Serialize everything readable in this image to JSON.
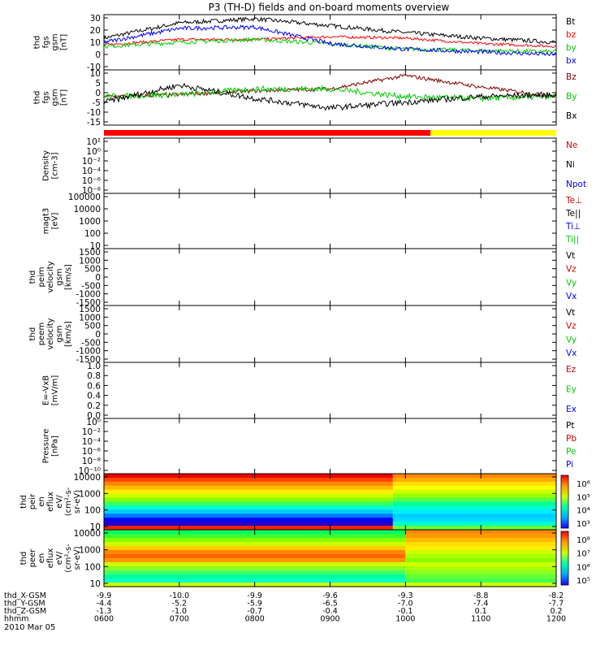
{
  "title": "P3 (TH-D) fields and on-board moments overview",
  "date_label": "2010 Mar 05",
  "colors": {
    "black": "#000000",
    "red": "#ff0000",
    "green": "#00cc00",
    "blue": "#0000ff",
    "dark_red": "#800000",
    "bright_green": "#33ee55",
    "yellow": "#ffff00"
  },
  "panels": [
    {
      "id": "fgs-mag",
      "ylabel": [
        "thd",
        "fgs",
        "gsm",
        "[nT]"
      ],
      "ticks": [
        "30",
        "20",
        "10",
        "0",
        "-10"
      ],
      "legend": [
        {
          "text": "Bt",
          "color": "#000000"
        },
        {
          "text": "bz",
          "color": "#ff0000"
        },
        {
          "text": "by",
          "color": "#00cc00"
        },
        {
          "text": "bx",
          "color": "#0000ff"
        }
      ]
    },
    {
      "id": "fgs-comp",
      "ylabel": [
        "thd",
        "fgs",
        "gsm",
        "[nT]"
      ],
      "ticks": [
        "10",
        "5",
        "0",
        "-5",
        "-10",
        "-15"
      ],
      "legend": [
        {
          "text": "Bz",
          "color": "#800000"
        },
        {
          "text": "By",
          "color": "#00cc00"
        },
        {
          "text": "Bx",
          "color": "#000000"
        }
      ]
    },
    {
      "id": "density",
      "ylabel": [
        "Density",
        "[cm-3]"
      ],
      "ticks": [
        "10²",
        "10⁰",
        "10⁻²",
        "10⁻⁴",
        "10⁻⁶",
        "10⁻⁸"
      ],
      "legend": [
        {
          "text": "Ne",
          "color": "#cc0000"
        },
        {
          "text": "Ni",
          "color": "#000000"
        },
        {
          "text": "Npot",
          "color": "#0000ff"
        }
      ]
    },
    {
      "id": "temperature",
      "ylabel": [
        "magt3",
        "[eV]"
      ],
      "ticks": [
        "100000",
        "10000",
        "1000",
        "100",
        "10"
      ],
      "legend": [
        {
          "text": "Te⊥",
          "color": "#cc0000"
        },
        {
          "text": "Te||",
          "color": "#000000"
        },
        {
          "text": "Ti⊥",
          "color": "#0000ff"
        },
        {
          "text": "Ti||",
          "color": "#00cc00"
        }
      ]
    },
    {
      "id": "peim-vel",
      "ylabel": [
        "thd",
        "peim",
        "velocity",
        "gsm",
        "[km/s]"
      ],
      "ticks": [
        "1500",
        "1000",
        "500",
        "0",
        "-500",
        "-1000",
        "-1500"
      ],
      "legend": [
        {
          "text": "Vt",
          "color": "#000000"
        },
        {
          "text": "Vz",
          "color": "#cc0000"
        },
        {
          "text": "Vy",
          "color": "#00cc00"
        },
        {
          "text": "Vx",
          "color": "#0000ff"
        }
      ]
    },
    {
      "id": "peem-vel",
      "ylabel": [
        "thd",
        "peem",
        "velocity",
        "gsm",
        "[km/s]"
      ],
      "ticks": [
        "1500",
        "1000",
        "500",
        "0",
        "-500",
        "-1000",
        "-1500"
      ],
      "legend": [
        {
          "text": "Vt",
          "color": "#000000"
        },
        {
          "text": "Vz",
          "color": "#cc0000"
        },
        {
          "text": "Vy",
          "color": "#00cc00"
        },
        {
          "text": "Vx",
          "color": "#0000ff"
        }
      ]
    },
    {
      "id": "efield",
      "ylabel": [
        "E=-VxB",
        "[mV/m]"
      ],
      "ticks": [
        "1.0",
        "0.8",
        "0.6",
        "0.4",
        "0.2",
        "0.0"
      ],
      "legend": [
        {
          "text": "Ez",
          "color": "#cc0000"
        },
        {
          "text": "Ey",
          "color": "#00cc00"
        },
        {
          "text": "Ex",
          "color": "#0000ff"
        }
      ]
    },
    {
      "id": "pressure",
      "ylabel": [
        "Pressure",
        "[nPa]"
      ],
      "ticks": [
        "10⁰",
        "10⁻²",
        "10⁻⁴",
        "10⁻⁶",
        "10⁻⁸",
        "10⁻¹⁰"
      ],
      "legend": [
        {
          "text": "Pt",
          "color": "#000000"
        },
        {
          "text": "Pb",
          "color": "#cc0000"
        },
        {
          "text": "Pe",
          "color": "#00cc00"
        },
        {
          "text": "Pi",
          "color": "#0000ff"
        }
      ]
    },
    {
      "id": "peir-spec",
      "ylabel": [
        "thd",
        "peir",
        "en",
        "eflux",
        "eV/",
        "(cm²-s-",
        "sr-eV)"
      ],
      "ticks": [
        "10000",
        "1000",
        "100",
        "10"
      ],
      "colorbar_ticks": [
        "10⁶",
        "10⁵",
        "10⁴",
        "10³"
      ]
    },
    {
      "id": "peer-spec",
      "ylabel": [
        "thd",
        "peer",
        "en",
        "eflux",
        "eV/",
        "(cm²-s-",
        "sr-eV)"
      ],
      "ticks": [
        "10000",
        "1000",
        "100",
        "10"
      ],
      "colorbar_ticks": [
        "10⁸",
        "10⁷",
        "10⁶",
        "10⁵"
      ]
    }
  ],
  "ephemeris": [
    {
      "name": "thd_X-GSM",
      "values": [
        "-9.9",
        "-10.0",
        "-9.9",
        "-9.6",
        "-9.3",
        "-8.8",
        "-8.2"
      ]
    },
    {
      "name": "thd_Y-GSM",
      "values": [
        "-4.4",
        "-5.2",
        "-5.9",
        "-6.5",
        "-7.0",
        "-7.4",
        "-7.7"
      ]
    },
    {
      "name": "thd_Z-GSM",
      "values": [
        "-1.3",
        "-1.0",
        "-0.7",
        "-0.4",
        "-0.1",
        "0.1",
        "0.2"
      ]
    },
    {
      "name": "hhmm",
      "values": [
        "0600",
        "0700",
        "0800",
        "0900",
        "1000",
        "1100",
        "1200"
      ]
    }
  ],
  "chart_data": {
    "type": "line",
    "title": "P3 (TH-D) fields and on-board moments overview",
    "x_label": "hhmm",
    "x": [
      "0600",
      "0700",
      "0800",
      "0900",
      "1000",
      "1100",
      "1200"
    ],
    "xlim": [
      "0600",
      "1200"
    ],
    "panels": [
      {
        "id": "fgs-mag",
        "ylim": [
          -10,
          30
        ],
        "series": [
          {
            "name": "Bt",
            "color": "#000000",
            "values": [
              13,
              24,
              27,
              22,
              17,
              13,
              10
            ]
          },
          {
            "name": "bz",
            "color": "#ff0000",
            "values": [
              8,
              12,
              12,
              14,
              13,
              9,
              7
            ]
          },
          {
            "name": "by",
            "color": "#00cc00",
            "values": [
              7,
              10,
              12,
              9,
              5,
              4,
              3
            ]
          },
          {
            "name": "bx",
            "color": "#0000ff",
            "values": [
              10,
              20,
              21,
              9,
              5,
              3,
              1
            ]
          }
        ]
      },
      {
        "id": "fgs-comp",
        "ylim": [
          -17,
          12
        ],
        "series": [
          {
            "name": "Bz",
            "color": "#800000",
            "values": [
              -2,
              -1,
              1,
              2,
              9,
              3,
              -2
            ]
          },
          {
            "name": "By",
            "color": "#00cc00",
            "values": [
              -2,
              -1,
              2,
              2,
              -2,
              -3,
              -2
            ]
          },
          {
            "name": "Bx",
            "color": "#000000",
            "values": [
              -5,
              4,
              -3,
              -8,
              -5,
              -2,
              -1
            ]
          }
        ]
      }
    ],
    "mode_bar": [
      {
        "from": "0600",
        "to": "1020",
        "color": "#ff0000"
      },
      {
        "from": "1020",
        "to": "1200",
        "color": "#ffff00"
      }
    ],
    "spectrograms": [
      {
        "id": "peir-spec",
        "ylim": [
          10,
          20000
        ],
        "yscale": "log",
        "transition": "0950"
      },
      {
        "id": "peer-spec",
        "ylim": [
          10,
          20000
        ],
        "yscale": "log",
        "transition": "1000"
      }
    ]
  }
}
